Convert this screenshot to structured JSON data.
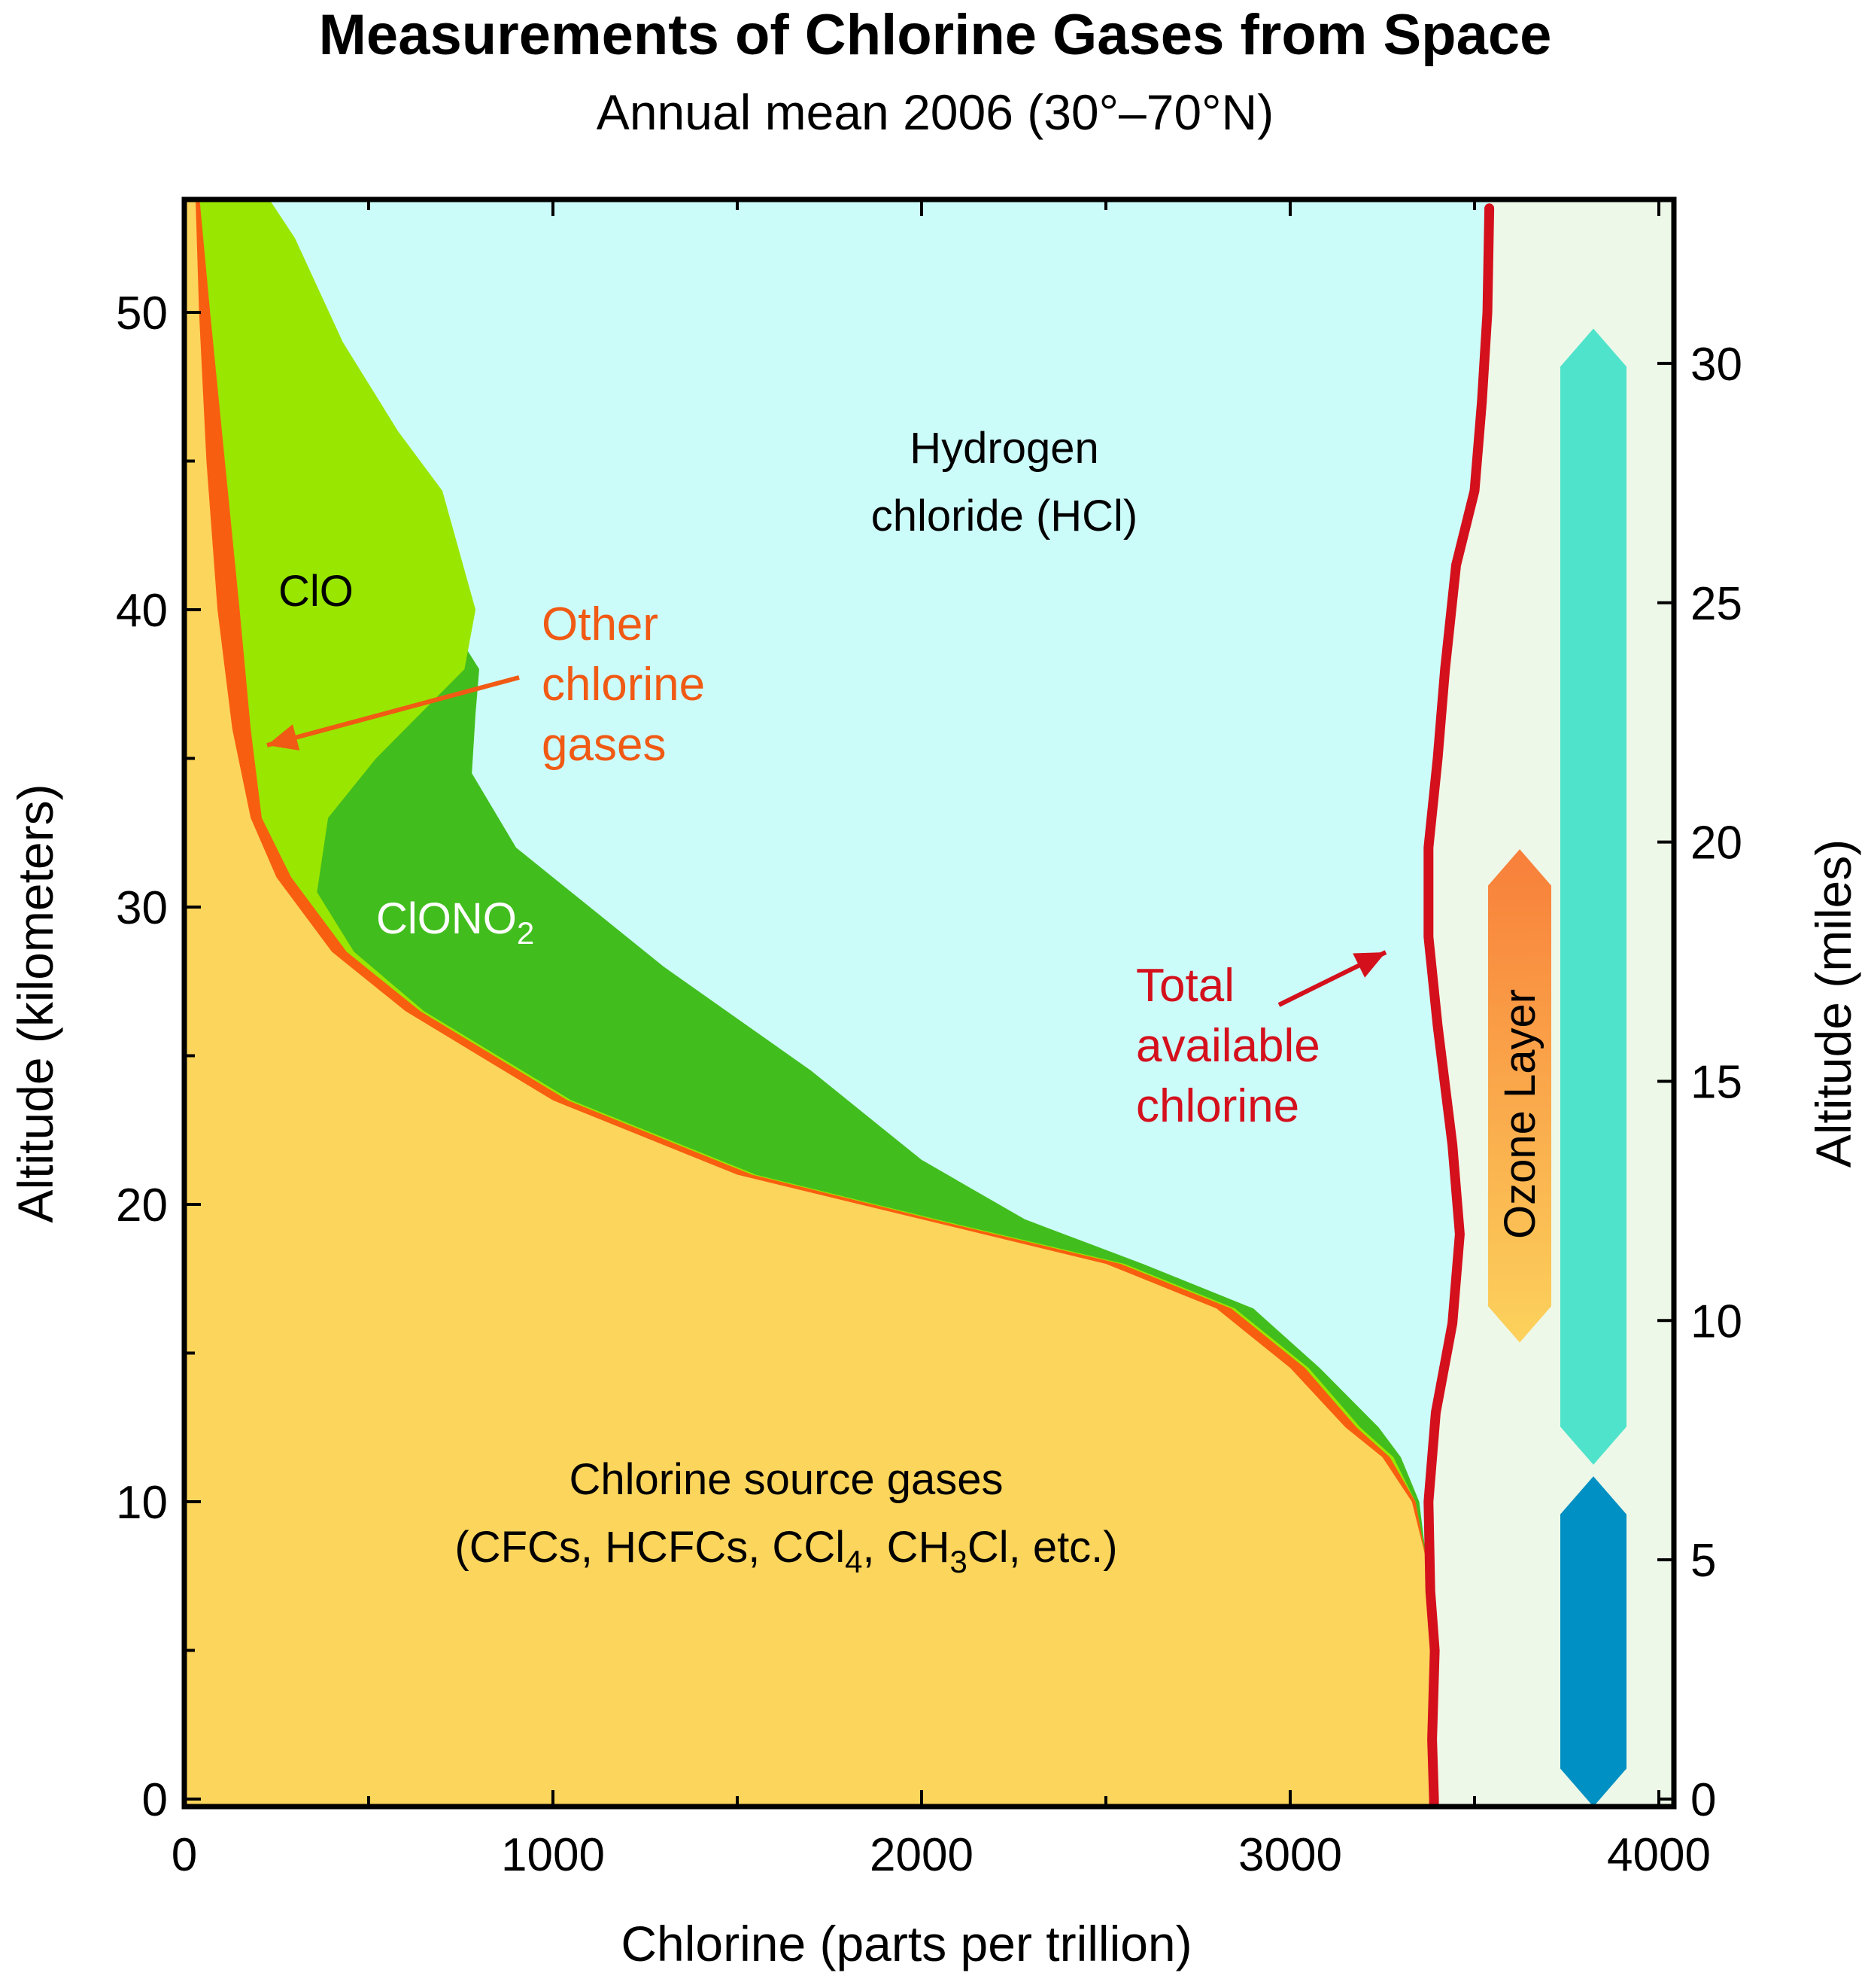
{
  "chart_data": {
    "type": "area",
    "title": "Measurements of Chlorine Gases from Space",
    "subtitle": "Annual mean 2006 (30°–70°N)",
    "xlabel": "Chlorine (parts per trillion)",
    "ylabel": "Altitude (kilometers)",
    "y2label": "Altitude (miles)",
    "xlim": [
      0,
      4000
    ],
    "ylim": [
      0,
      54
    ],
    "y2lim": [
      0,
      33.55
    ],
    "x_ticks": [
      0,
      1000,
      2000,
      3000,
      4000
    ],
    "y_ticks": [
      0,
      10,
      20,
      30,
      40,
      50
    ],
    "y2_ticks": [
      0,
      5,
      10,
      15,
      20,
      25,
      30
    ],
    "grid": false,
    "series": [
      {
        "name": "Chlorine source gases (CFCs, HCFCs, CCl4, CH3Cl, etc.)",
        "color": "#fcd55c",
        "points": [
          [
            3390,
            0
          ],
          [
            3380,
            5
          ],
          [
            3370,
            8
          ],
          [
            3330,
            10
          ],
          [
            3250,
            11.5
          ],
          [
            3150,
            12.5
          ],
          [
            3000,
            14.5
          ],
          [
            2800,
            16.5
          ],
          [
            2500,
            18
          ],
          [
            2000,
            19.5
          ],
          [
            1500,
            21
          ],
          [
            1000,
            23.5
          ],
          [
            600,
            26.5
          ],
          [
            400,
            28.5
          ],
          [
            250,
            31
          ],
          [
            180,
            33
          ],
          [
            130,
            36
          ],
          [
            90,
            40
          ],
          [
            60,
            45
          ],
          [
            40,
            50
          ],
          [
            30,
            54
          ]
        ]
      },
      {
        "name": "Other chlorine gases",
        "color": "#f85e10",
        "points": [
          [
            3370,
            8
          ],
          [
            3340,
            10
          ],
          [
            3270,
            11.5
          ],
          [
            3180,
            12.5
          ],
          [
            3040,
            14.5
          ],
          [
            2840,
            16.5
          ],
          [
            2540,
            18
          ],
          [
            2030,
            19.5
          ],
          [
            1540,
            21
          ],
          [
            1040,
            23.5
          ],
          [
            640,
            26.5
          ],
          [
            440,
            28.5
          ],
          [
            290,
            31
          ],
          [
            210,
            33
          ],
          [
            180,
            36
          ],
          [
            150,
            40
          ],
          [
            110,
            45
          ],
          [
            70,
            50
          ],
          [
            40,
            54
          ]
        ]
      },
      {
        "name": "ClO",
        "color": "#99e600",
        "points": [
          [
            3370,
            8
          ],
          [
            3340,
            10
          ],
          [
            3280,
            11.5
          ],
          [
            3190,
            12.5
          ],
          [
            3050,
            14.5
          ],
          [
            2850,
            16.5
          ],
          [
            2550,
            18
          ],
          [
            2040,
            19.5
          ],
          [
            1550,
            21
          ],
          [
            1050,
            23.5
          ],
          [
            650,
            26.5
          ],
          [
            460,
            28.5
          ],
          [
            360,
            30.5
          ],
          [
            390,
            33
          ],
          [
            520,
            35
          ],
          [
            760,
            38
          ],
          [
            790,
            40
          ],
          [
            700,
            44
          ],
          [
            580,
            46
          ],
          [
            430,
            49
          ],
          [
            300,
            52.5
          ],
          [
            220,
            54
          ]
        ]
      },
      {
        "name": "ClONO2",
        "color": "#42bd1e",
        "points": [
          [
            3370,
            8
          ],
          [
            3350,
            10
          ],
          [
            3300,
            11.5
          ],
          [
            3240,
            12.5
          ],
          [
            3080,
            14.5
          ],
          [
            2900,
            16.5
          ],
          [
            2600,
            18
          ],
          [
            2280,
            19.5
          ],
          [
            2000,
            21.5
          ],
          [
            1700,
            24.5
          ],
          [
            1300,
            28
          ],
          [
            900,
            32
          ],
          [
            780,
            34.5
          ],
          [
            790,
            36.5
          ],
          [
            800,
            38
          ]
        ]
      },
      {
        "name": "Hydrogen chloride (HCl)",
        "color": "#ccfcfa",
        "points": []
      },
      {
        "name": "Total available chlorine",
        "color": "#d4101c",
        "points": [
          [
            3390,
            0
          ],
          [
            3385,
            2
          ],
          [
            3392,
            5
          ],
          [
            3380,
            7
          ],
          [
            3375,
            10
          ],
          [
            3395,
            13
          ],
          [
            3440,
            16
          ],
          [
            3460,
            19
          ],
          [
            3440,
            22
          ],
          [
            3400,
            26
          ],
          [
            3375,
            29
          ],
          [
            3375,
            32
          ],
          [
            3400,
            35
          ],
          [
            3420,
            38
          ],
          [
            3450,
            41.5
          ],
          [
            3500,
            44
          ],
          [
            3520,
            47
          ],
          [
            3535,
            50
          ],
          [
            3540,
            53.5
          ]
        ]
      }
    ],
    "ranges": [
      {
        "name": "Ozone Layer",
        "color_top": "#f87f3a",
        "color_bottom": "#fcd25c",
        "y_from_km": 15.6,
        "y_to_km": 31.7
      },
      {
        "name": "stratosphere-bar",
        "color": "#4fe3cc",
        "y_from_km": 11.5,
        "y_to_km": 49.2
      },
      {
        "name": "troposphere-bar",
        "color": "#0090c3",
        "y_from_km": 0,
        "y_to_km": 10.6
      }
    ],
    "annotations": {
      "clo": "ClO",
      "clono2_main": "ClONO",
      "clono2_sub": "2",
      "hcl_line1": "Hydrogen",
      "hcl_line2": "chloride (HCl)",
      "other_line1": "Other",
      "other_line2": "chlorine",
      "other_line3": "gases",
      "total_line1": "Total",
      "total_line2": "available",
      "total_line3": "chlorine",
      "ozone": "Ozone Layer",
      "source_line1": "Chlorine source gases",
      "source_line2_a": "(CFCs, HCFCs, CCl",
      "source_line2_b": "4",
      "source_line2_c": ", CH",
      "source_line2_d": "3",
      "source_line2_e": "Cl, etc.)"
    },
    "colors": {
      "background_right": "#eef8e8",
      "hcl": "#ccfcfa",
      "arrow_orange": "#f05a14",
      "arrow_red": "#d4101c"
    }
  }
}
